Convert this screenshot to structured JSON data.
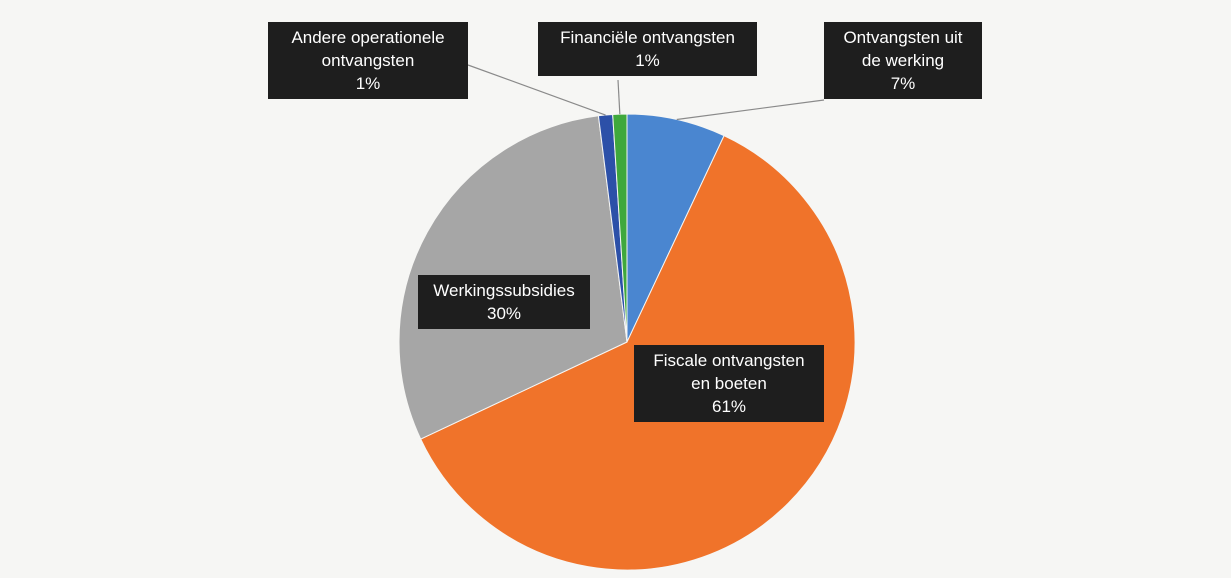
{
  "chart_data": {
    "type": "pie",
    "categories": [
      "Ontvangsten uit de werking",
      "Fiscale ontvangsten en boeten",
      "Werkingssubsidies",
      "Andere operationele ontvangsten",
      "Financiële ontvangsten"
    ],
    "values": [
      7,
      61,
      30,
      1,
      1
    ],
    "value_labels": [
      "7%",
      "61%",
      "30%",
      "1%",
      "1%"
    ],
    "colors": [
      "#4a86d0",
      "#f0732a",
      "#a6a6a6",
      "#2c50a8",
      "#3fa83c"
    ]
  }
}
